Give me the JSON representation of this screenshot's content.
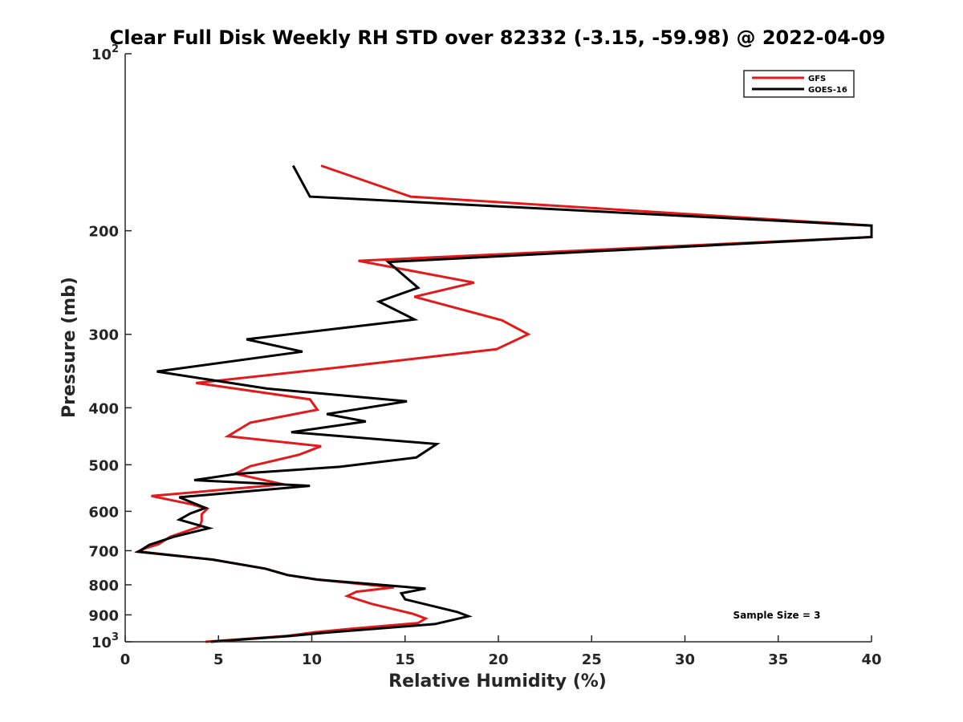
{
  "chart_data": {
    "type": "line",
    "title": "Clear Full Disk Weekly RH STD over 82332 (-3.15, -59.98) @ 2022-04-09",
    "xlabel": "Relative Humidity (%)",
    "ylabel": "Pressure (mb)",
    "xlim": [
      0,
      40
    ],
    "ylim": [
      1000,
      100
    ],
    "y_scale": "log",
    "y_reversed": true,
    "xticks": [
      0,
      5,
      10,
      15,
      20,
      25,
      30,
      35,
      40
    ],
    "xtick_labels": [
      "0",
      "5",
      "10",
      "15",
      "20",
      "25",
      "30",
      "35",
      "40"
    ],
    "yticks": [
      {
        "value": 100,
        "base": "10",
        "sup": "2"
      },
      {
        "value": 200,
        "base": "200",
        "sup": ""
      },
      {
        "value": 300,
        "base": "300",
        "sup": ""
      },
      {
        "value": 400,
        "base": "400",
        "sup": ""
      },
      {
        "value": 500,
        "base": "500",
        "sup": ""
      },
      {
        "value": 600,
        "base": "600",
        "sup": ""
      },
      {
        "value": 700,
        "base": "700",
        "sup": ""
      },
      {
        "value": 800,
        "base": "800",
        "sup": ""
      },
      {
        "value": 900,
        "base": "900",
        "sup": ""
      },
      {
        "value": 1000,
        "base": "10",
        "sup": "3"
      }
    ],
    "grid": false,
    "legend_position": "top-right",
    "annotation": "Sample Size = 3",
    "series": [
      {
        "name": "GFS",
        "color": "#e31a1c",
        "points": [
          [
            10.5,
            155
          ],
          [
            15.3,
            175
          ],
          [
            40,
            196
          ],
          [
            40,
            205
          ],
          [
            12.5,
            225
          ],
          [
            18.7,
            245
          ],
          [
            15.5,
            259
          ],
          [
            20.2,
            284
          ],
          [
            21.6,
            300
          ],
          [
            19.9,
            318
          ],
          [
            11.3,
            342
          ],
          [
            3.8,
            363
          ],
          [
            9.9,
            387
          ],
          [
            10.3,
            403
          ],
          [
            6.7,
            424
          ],
          [
            5.5,
            447
          ],
          [
            10.5,
            465
          ],
          [
            9.3,
            481
          ],
          [
            6.7,
            503
          ],
          [
            5.9,
            518
          ],
          [
            8.5,
            540
          ],
          [
            1.4,
            565
          ],
          [
            3.6,
            584
          ],
          [
            4.4,
            594
          ],
          [
            4.1,
            607
          ],
          [
            4.1,
            623
          ],
          [
            4.0,
            637
          ],
          [
            2.4,
            663
          ],
          [
            1.8,
            682
          ],
          [
            1.1,
            693
          ],
          [
            0.7,
            702
          ],
          [
            4.7,
            725
          ],
          [
            7.5,
            751
          ],
          [
            8.7,
            770
          ],
          [
            10.3,
            784
          ],
          [
            14.4,
            808
          ],
          [
            12.4,
            822
          ],
          [
            11.9,
            836
          ],
          [
            13.2,
            862
          ],
          [
            15.4,
            896
          ],
          [
            16.1,
            913
          ],
          [
            15.7,
            929
          ],
          [
            12.0,
            951
          ],
          [
            10.1,
            964
          ],
          [
            8.7,
            977
          ],
          [
            4.3,
            1000
          ]
        ]
      },
      {
        "name": "GOES-16",
        "color": "#000000",
        "points": [
          [
            9.0,
            155
          ],
          [
            9.9,
            175
          ],
          [
            40,
            196
          ],
          [
            40,
            205
          ],
          [
            14.1,
            226
          ],
          [
            15.7,
            250
          ],
          [
            13.6,
            264
          ],
          [
            15.5,
            283
          ],
          [
            6.5,
            306
          ],
          [
            9.5,
            321
          ],
          [
            1.7,
            347
          ],
          [
            7.6,
            371
          ],
          [
            15.1,
            390
          ],
          [
            10.8,
            410
          ],
          [
            12.9,
            422
          ],
          [
            8.9,
            440
          ],
          [
            16.7,
            461
          ],
          [
            15.6,
            486
          ],
          [
            11.5,
            504
          ],
          [
            6.0,
            518
          ],
          [
            3.7,
            531
          ],
          [
            9.9,
            543
          ],
          [
            2.9,
            568
          ],
          [
            4.3,
            592
          ],
          [
            3.5,
            605
          ],
          [
            2.9,
            620
          ],
          [
            3.9,
            633
          ],
          [
            4.5,
            641
          ],
          [
            2.6,
            663
          ],
          [
            1.3,
            684
          ],
          [
            0.7,
            703
          ],
          [
            4.7,
            725
          ],
          [
            7.5,
            751
          ],
          [
            8.7,
            770
          ],
          [
            10.3,
            784
          ],
          [
            16.1,
            812
          ],
          [
            14.8,
            827
          ],
          [
            15.0,
            847
          ],
          [
            17.8,
            890
          ],
          [
            18.4,
            905
          ],
          [
            16.6,
            933
          ],
          [
            10.7,
            965
          ],
          [
            8.8,
            978
          ],
          [
            4.6,
            1000
          ]
        ]
      }
    ]
  }
}
